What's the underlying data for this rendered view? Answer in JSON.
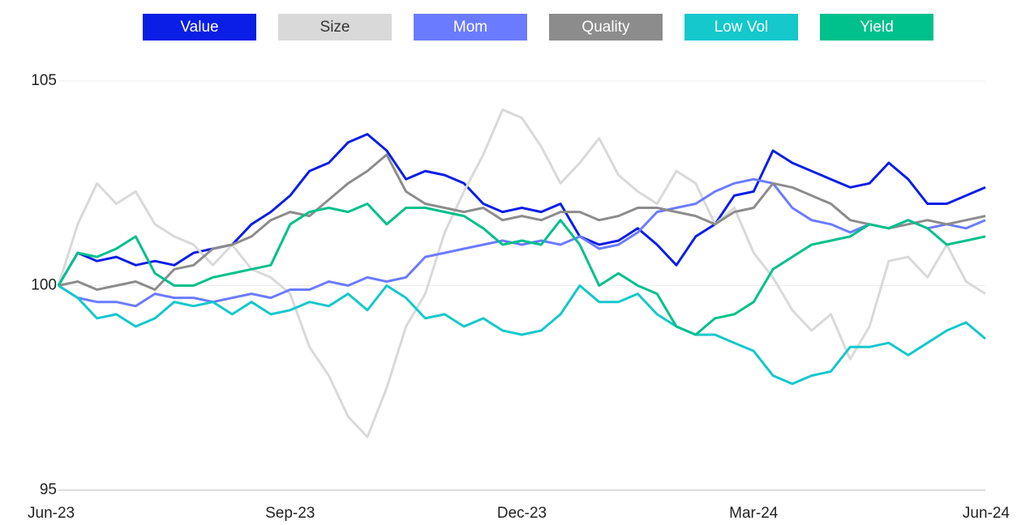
{
  "chart_data": {
    "type": "line",
    "categories": [
      "Jun-23",
      null,
      null,
      null,
      null,
      null,
      null,
      null,
      null,
      null,
      null,
      null,
      "Sep-23",
      null,
      null,
      null,
      null,
      null,
      null,
      null,
      null,
      null,
      null,
      null,
      "Dec-23",
      null,
      null,
      null,
      null,
      null,
      null,
      null,
      null,
      null,
      null,
      null,
      "Mar-24",
      null,
      null,
      null,
      null,
      null,
      null,
      null,
      null,
      null,
      null,
      null,
      "Jun-24"
    ],
    "series": [
      {
        "name": "Value",
        "color": "#0a1ee6",
        "values": [
          100,
          100.8,
          100.6,
          100.7,
          100.5,
          100.6,
          100.5,
          100.8,
          100.9,
          101.0,
          101.5,
          101.8,
          102.2,
          102.8,
          103.0,
          103.5,
          103.7,
          103.3,
          102.6,
          102.8,
          102.7,
          102.5,
          102.0,
          101.8,
          101.9,
          101.8,
          102.0,
          101.2,
          101.0,
          101.1,
          101.4,
          101.0,
          100.5,
          101.2,
          101.5,
          102.2,
          102.3,
          103.3,
          103.0,
          102.8,
          102.6,
          102.4,
          102.5,
          103.0,
          102.6,
          102.0,
          102.0,
          102.2,
          102.4
        ]
      },
      {
        "name": "Size",
        "color": "#d9d9d9",
        "values": [
          100,
          101.5,
          102.5,
          102.0,
          102.3,
          101.5,
          101.2,
          101.0,
          100.5,
          101.0,
          100.4,
          100.2,
          99.8,
          98.5,
          97.8,
          96.8,
          96.3,
          97.5,
          99.0,
          99.8,
          101.3,
          102.3,
          103.2,
          104.3,
          104.1,
          103.4,
          102.5,
          103.0,
          103.6,
          102.7,
          102.3,
          102.0,
          102.8,
          102.5,
          101.5,
          101.9,
          100.8,
          100.2,
          99.4,
          98.9,
          99.3,
          98.2,
          99.0,
          100.6,
          100.7,
          100.2,
          101.0,
          100.1,
          99.8
        ]
      },
      {
        "name": "Mom",
        "color": "#6b7bff",
        "values": [
          100,
          99.7,
          99.6,
          99.6,
          99.5,
          99.8,
          99.7,
          99.7,
          99.6,
          99.7,
          99.8,
          99.7,
          99.9,
          99.9,
          100.1,
          100.0,
          100.2,
          100.1,
          100.2,
          100.7,
          100.8,
          100.9,
          101.0,
          101.1,
          101.0,
          101.1,
          101.0,
          101.2,
          100.9,
          101.0,
          101.3,
          101.8,
          101.9,
          102.0,
          102.3,
          102.5,
          102.6,
          102.5,
          101.9,
          101.6,
          101.5,
          101.3,
          101.5,
          101.4,
          101.6,
          101.4,
          101.5,
          101.4,
          101.6
        ]
      },
      {
        "name": "Quality",
        "color": "#8c8c8c",
        "values": [
          100,
          100.1,
          99.9,
          100.0,
          100.1,
          99.9,
          100.4,
          100.5,
          100.9,
          101.0,
          101.2,
          101.6,
          101.8,
          101.7,
          102.1,
          102.5,
          102.8,
          103.2,
          102.3,
          102.0,
          101.9,
          101.8,
          101.9,
          101.6,
          101.7,
          101.6,
          101.8,
          101.8,
          101.6,
          101.7,
          101.9,
          101.9,
          101.8,
          101.7,
          101.5,
          101.8,
          101.9,
          102.5,
          102.4,
          102.2,
          102.0,
          101.6,
          101.5,
          101.4,
          101.5,
          101.6,
          101.5,
          101.6,
          101.7
        ]
      },
      {
        "name": "Low Vol",
        "color": "#14c8cc",
        "values": [
          100,
          99.7,
          99.2,
          99.3,
          99.0,
          99.2,
          99.6,
          99.5,
          99.6,
          99.3,
          99.6,
          99.3,
          99.4,
          99.6,
          99.5,
          99.8,
          99.4,
          100.0,
          99.7,
          99.2,
          99.3,
          99.0,
          99.2,
          98.9,
          98.8,
          98.9,
          99.3,
          100.0,
          99.6,
          99.6,
          99.8,
          99.3,
          99.0,
          98.8,
          98.8,
          98.6,
          98.4,
          97.8,
          97.6,
          97.8,
          97.9,
          98.5,
          98.5,
          98.6,
          98.3,
          98.6,
          98.9,
          99.1,
          98.7
        ]
      },
      {
        "name": "Yield",
        "color": "#00c08b",
        "values": [
          100,
          100.8,
          100.7,
          100.9,
          101.2,
          100.3,
          100.0,
          100.0,
          100.2,
          100.3,
          100.4,
          100.5,
          101.5,
          101.8,
          101.9,
          101.8,
          102.0,
          101.5,
          101.9,
          101.9,
          101.8,
          101.7,
          101.4,
          101.0,
          101.1,
          101.0,
          101.6,
          101.0,
          100.0,
          100.3,
          100.0,
          99.8,
          99.0,
          98.8,
          99.2,
          99.3,
          99.6,
          100.4,
          100.7,
          101.0,
          101.1,
          101.2,
          101.5,
          101.4,
          101.6,
          101.4,
          101.0,
          101.1,
          101.2
        ]
      }
    ],
    "ylim": [
      95,
      105
    ],
    "yticks": [
      95,
      100,
      105
    ],
    "grid": true,
    "legend": "top"
  }
}
